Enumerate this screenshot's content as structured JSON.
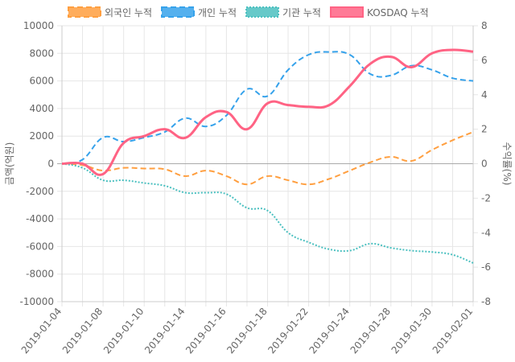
{
  "chart_data": {
    "type": "line",
    "categories": [
      "2019-01-04",
      null,
      "2019-01-08",
      null,
      "2019-01-10",
      null,
      "2019-01-14",
      null,
      "2019-01-16",
      null,
      "2019-01-18",
      null,
      "2019-01-22",
      null,
      "2019-01-24",
      null,
      "2019-01-28",
      null,
      "2019-01-30",
      null,
      "2019-02-01"
    ],
    "y_label": "금액(억원)",
    "y2_label": "수익률(%)",
    "ylim": [
      -10000,
      10000
    ],
    "yticks": [
      -10000,
      -8000,
      -6000,
      -4000,
      -2000,
      0,
      2000,
      4000,
      6000,
      8000,
      10000
    ],
    "y2lim": [
      -8,
      8
    ],
    "y2ticks": [
      -8,
      -6,
      -4,
      -2,
      0,
      2,
      4,
      6,
      8
    ],
    "grid": true,
    "legend": "top",
    "series": [
      {
        "name": "외국인 누적",
        "color": "#ff9f40",
        "style": "dashed",
        "values": [
          0,
          -100,
          -500,
          -300,
          -350,
          -400,
          -900,
          -500,
          -900,
          -1500,
          -900,
          -1200,
          -1500,
          -1100,
          -500,
          100,
          500,
          200,
          1000,
          1700,
          2300
        ]
      },
      {
        "name": "개인 누적",
        "color": "#36a2eb",
        "style": "dashed",
        "values": [
          0,
          300,
          1900,
          1600,
          1900,
          2300,
          3300,
          2700,
          3500,
          5400,
          4900,
          6800,
          7900,
          8100,
          7900,
          6500,
          6400,
          7100,
          6800,
          6200,
          6000
        ]
      },
      {
        "name": "기관 누적",
        "color": "#4bc0c0",
        "style": "dotted",
        "values": [
          0,
          -300,
          -1200,
          -1200,
          -1400,
          -1600,
          -2100,
          -2100,
          -2200,
          -3200,
          -3400,
          -5000,
          -5700,
          -6200,
          -6300,
          -5800,
          -6100,
          -6300,
          -6400,
          -6600,
          -7200
        ]
      },
      {
        "name": "KOSDAQ 누적",
        "color": "#ff6384",
        "style": "solid",
        "axis": "y2",
        "values": [
          0,
          0,
          -0.6,
          1.2,
          1.6,
          2.0,
          1.5,
          2.7,
          3.0,
          2.0,
          3.5,
          3.4,
          3.3,
          3.4,
          4.5,
          5.8,
          6.2,
          5.6,
          6.4,
          6.6,
          6.5
        ]
      }
    ]
  }
}
